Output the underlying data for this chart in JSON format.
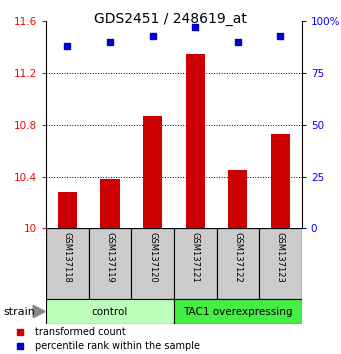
{
  "title": "GDS2451 / 248619_at",
  "samples": [
    "GSM137118",
    "GSM137119",
    "GSM137120",
    "GSM137121",
    "GSM137122",
    "GSM137123"
  ],
  "bar_values": [
    10.28,
    10.38,
    10.87,
    11.35,
    10.45,
    10.73
  ],
  "percentile_values": [
    88,
    90,
    93,
    97,
    90,
    93
  ],
  "ylim_left": [
    10.0,
    11.6
  ],
  "ylim_right": [
    0,
    100
  ],
  "yticks_left": [
    10.0,
    10.4,
    10.8,
    11.2,
    11.6
  ],
  "yticks_right": [
    0,
    25,
    50,
    75,
    100
  ],
  "ytick_labels_left": [
    "10",
    "10.4",
    "10.8",
    "11.2",
    "11.6"
  ],
  "ytick_labels_right": [
    "0",
    "25",
    "50",
    "75",
    "100%"
  ],
  "bar_color": "#cc0000",
  "dot_color": "#0000cc",
  "groups": [
    {
      "label": "control",
      "indices": [
        0,
        1,
        2
      ],
      "color": "#bbffbb"
    },
    {
      "label": "TAC1 overexpressing",
      "indices": [
        3,
        4,
        5
      ],
      "color": "#44ee44"
    }
  ],
  "sample_box_color": "#cccccc",
  "legend_bar_label": "transformed count",
  "legend_dot_label": "percentile rank within the sample",
  "strain_label": "strain",
  "title_fontsize": 10,
  "tick_fontsize": 7.5,
  "sample_fontsize": 6,
  "group_fontsize": 7.5,
  "legend_fontsize": 7
}
